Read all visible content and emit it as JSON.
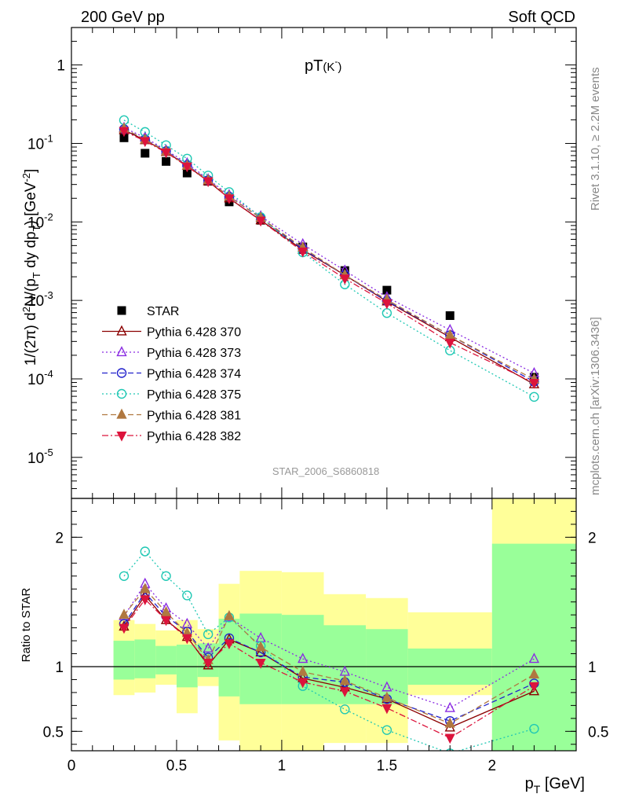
{
  "header": {
    "left": "200 GeV pp",
    "right": "Soft QCD"
  },
  "side_text": {
    "top": "Rivet 3.1.10, ≥ 2.2M events",
    "bottom": "mcplots.cern.ch [arXiv:1306.3436]"
  },
  "watermark": "STAR_2006_S6860818",
  "plot_title_main": "pT",
  "plot_title_sub": "(K",
  "plot_title_sup": "-",
  "plot_title_end": ")",
  "chart_data": [
    {
      "type": "scatter",
      "panel": "main",
      "ylabel": "1/(2π) d²N/(p_T dy dp_T) [GeV⁻²]",
      "yscale": "log",
      "ylim": [
        3e-06,
        3
      ],
      "xlim": [
        0,
        2.4
      ],
      "yticks": [
        {
          "v": 1,
          "label": "1"
        },
        {
          "v": 0.1,
          "label": "10",
          "exp": "-1"
        },
        {
          "v": 0.01,
          "label": "10",
          "exp": "-2"
        },
        {
          "v": 0.001,
          "label": "10",
          "exp": "-3"
        },
        {
          "v": 0.0001,
          "label": "10",
          "exp": "-4"
        },
        {
          "v": 1e-05,
          "label": "10",
          "exp": "-5"
        }
      ],
      "x": [
        0.25,
        0.35,
        0.45,
        0.55,
        0.65,
        0.75,
        0.9,
        1.1,
        1.3,
        1.5,
        1.8,
        2.2
      ],
      "series": [
        {
          "name": "STAR",
          "color": "#000000",
          "marker": "square-filled",
          "line": "none",
          "values": [
            0.118,
            0.075,
            0.059,
            0.042,
            0.033,
            0.018,
            0.0105,
            0.0048,
            0.0024,
            0.00135,
            0.00064,
            0.000105
          ]
        },
        {
          "name": "Pythia 6.428 370",
          "color": "#8b0000",
          "marker": "triangle-open",
          "line": "solid",
          "values": [
            0.148,
            0.11,
            0.078,
            0.052,
            0.033,
            0.02,
            0.0105,
            0.0044,
            0.0021,
            0.00097,
            0.00034,
            8.55e-05
          ]
        },
        {
          "name": "Pythia 6.428 373",
          "color": "#8a2be2",
          "marker": "triangle-open",
          "line": "dotted",
          "values": [
            0.158,
            0.119,
            0.082,
            0.056,
            0.035,
            0.022,
            0.0118,
            0.0052,
            0.0024,
            0.0011,
            0.00042,
            0.000118
          ]
        },
        {
          "name": "Pythia 6.428 374",
          "color": "#2222cc",
          "marker": "circle-open",
          "line": "dashed",
          "values": [
            0.152,
            0.113,
            0.08,
            0.053,
            0.034,
            0.021,
            0.0112,
            0.0045,
            0.0021,
            0.00098,
            0.00036,
            9.2e-05
          ]
        },
        {
          "name": "Pythia 6.428 375",
          "color": "#20c8b4",
          "marker": "circle-open",
          "line": "dotted",
          "values": [
            0.198,
            0.14,
            0.095,
            0.064,
            0.039,
            0.024,
            0.0115,
            0.0041,
            0.0016,
            0.00069,
            0.00023,
            5.9e-05
          ]
        },
        {
          "name": "Pythia 6.428 381",
          "color": "#b07840",
          "marker": "triangle-filled",
          "line": "dashed",
          "values": [
            0.155,
            0.112,
            0.079,
            0.052,
            0.034,
            0.021,
            0.0113,
            0.0047,
            0.0021,
            0.00102,
            0.00036,
            9.85e-05
          ]
        },
        {
          "name": "Pythia 6.428 382",
          "color": "#dc143c",
          "marker": "triangle-down-filled",
          "line": "dashdot",
          "values": [
            0.144,
            0.107,
            0.077,
            0.051,
            0.033,
            0.02,
            0.0104,
            0.0042,
            0.0019,
            0.00092,
            0.00029,
            8.9e-05
          ]
        }
      ]
    },
    {
      "type": "line",
      "panel": "ratio",
      "xlabel": "p_T [GeV]",
      "ylabel": "Ratio to STAR",
      "ylim": [
        0.35,
        2.3
      ],
      "xlim": [
        0,
        2.4
      ],
      "xticks": [
        {
          "v": 0,
          "label": "0"
        },
        {
          "v": 0.5,
          "label": "0.5"
        },
        {
          "v": 1,
          "label": "1"
        },
        {
          "v": 1.5,
          "label": "1.5"
        },
        {
          "v": 2,
          "label": "2"
        }
      ],
      "yticks": [
        {
          "v": 0.5,
          "label": "0.5"
        },
        {
          "v": 1,
          "label": "1"
        },
        {
          "v": 2,
          "label": "2"
        }
      ],
      "bands": [
        {
          "xlo": 0.2,
          "xhi": 0.3,
          "ylo_y": 0.78,
          "yhi_y": 1.36,
          "ylo_g": 0.9,
          "yhi_g": 1.2
        },
        {
          "xlo": 0.3,
          "xhi": 0.4,
          "ylo_y": 0.8,
          "yhi_y": 1.33,
          "ylo_g": 0.91,
          "yhi_g": 1.21
        },
        {
          "xlo": 0.4,
          "xhi": 0.5,
          "ylo_y": 0.86,
          "yhi_y": 1.28,
          "ylo_g": 0.94,
          "yhi_g": 1.16
        },
        {
          "xlo": 0.5,
          "xhi": 0.6,
          "ylo_y": 0.64,
          "yhi_y": 1.36,
          "ylo_g": 0.84,
          "yhi_g": 1.17
        },
        {
          "xlo": 0.6,
          "xhi": 0.7,
          "ylo_y": 0.85,
          "yhi_y": 1.29,
          "ylo_g": 0.92,
          "yhi_g": 1.18
        },
        {
          "xlo": 0.7,
          "xhi": 0.8,
          "ylo_y": 0.43,
          "yhi_y": 1.64,
          "ylo_g": 0.77,
          "yhi_g": 1.37
        },
        {
          "xlo": 0.8,
          "xhi": 1.0,
          "ylo_y": 0.35,
          "yhi_y": 1.74,
          "ylo_g": 0.71,
          "yhi_g": 1.41
        },
        {
          "xlo": 1.0,
          "xhi": 1.2,
          "ylo_y": 0.35,
          "yhi_y": 1.73,
          "ylo_g": 0.71,
          "yhi_g": 1.4
        },
        {
          "xlo": 1.2,
          "xhi": 1.4,
          "ylo_y": 0.41,
          "yhi_y": 1.56,
          "ylo_g": 0.71,
          "yhi_g": 1.32
        },
        {
          "xlo": 1.4,
          "xhi": 1.6,
          "ylo_y": 0.41,
          "yhi_y": 1.53,
          "ylo_g": 0.71,
          "yhi_g": 1.29
        },
        {
          "xlo": 1.6,
          "xhi": 2.0,
          "ylo_y": 0.78,
          "yhi_y": 1.42,
          "ylo_g": 0.86,
          "yhi_g": 1.14
        },
        {
          "xlo": 2.0,
          "xhi": 2.4,
          "ylo_y": 0.35,
          "yhi_y": 2.3,
          "ylo_g": 0.35,
          "yhi_g": 1.95
        }
      ],
      "x": [
        0.25,
        0.35,
        0.45,
        0.55,
        0.65,
        0.75,
        0.9,
        1.1,
        1.3,
        1.5,
        1.8,
        2.2
      ],
      "series": [
        {
          "name": "Pythia 6.428 370",
          "values": [
            1.31,
            1.55,
            1.36,
            1.23,
            1.01,
            1.21,
            1.11,
            0.91,
            0.84,
            0.75,
            0.53,
            0.81
          ]
        },
        {
          "name": "Pythia 6.428 373",
          "values": [
            1.39,
            1.64,
            1.45,
            1.33,
            1.14,
            1.38,
            1.22,
            1.06,
            0.96,
            0.84,
            0.68,
            1.06
          ]
        },
        {
          "name": "Pythia 6.428 374",
          "values": [
            1.33,
            1.57,
            1.39,
            1.27,
            1.07,
            1.22,
            1.11,
            0.92,
            0.88,
            0.75,
            0.58,
            0.87
          ]
        },
        {
          "name": "Pythia 6.428 375",
          "values": [
            1.7,
            1.89,
            1.7,
            1.55,
            1.25,
            1.38,
            1.16,
            0.85,
            0.67,
            0.51,
            0.33,
            0.52
          ]
        },
        {
          "name": "Pythia 6.428 381",
          "values": [
            1.4,
            1.6,
            1.42,
            1.26,
            1.05,
            1.39,
            1.15,
            0.96,
            0.89,
            0.76,
            0.56,
            0.94
          ]
        },
        {
          "name": "Pythia 6.428 382",
          "values": [
            1.3,
            1.52,
            1.36,
            1.22,
            1.03,
            1.18,
            1.03,
            0.88,
            0.81,
            0.68,
            0.45,
            0.85
          ]
        }
      ]
    }
  ]
}
